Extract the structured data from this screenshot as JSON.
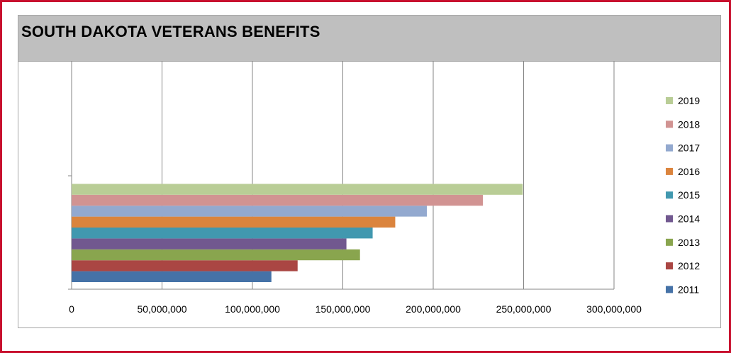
{
  "chart_data": {
    "type": "bar",
    "orientation": "horizontal",
    "title": "SOUTH DAKOTA VETERANS BENEFITS",
    "xlabel": "",
    "ylabel": "",
    "xlim": [
      0,
      300000000
    ],
    "xticks": [
      0,
      50000000,
      100000000,
      150000000,
      200000000,
      250000000,
      300000000
    ],
    "xtick_labels": [
      "0",
      "50,000,000",
      "100,000,000",
      "150,000,000",
      "200,000,000",
      "250,000,000",
      "300,000,000"
    ],
    "grid": true,
    "legend_position": "right",
    "series": [
      {
        "name": "2011",
        "values": [
          110500000
        ],
        "color": "#4572a7"
      },
      {
        "name": "2012",
        "values": [
          125000000
        ],
        "color": "#aa4643"
      },
      {
        "name": "2013",
        "values": [
          159500000
        ],
        "color": "#89a54e"
      },
      {
        "name": "2014",
        "values": [
          152000000
        ],
        "color": "#71588f"
      },
      {
        "name": "2015",
        "values": [
          166500000
        ],
        "color": "#4198af"
      },
      {
        "name": "2016",
        "values": [
          179000000
        ],
        "color": "#db843d"
      },
      {
        "name": "2017",
        "values": [
          196500000
        ],
        "color": "#93a9cf"
      },
      {
        "name": "2018",
        "values": [
          227500000
        ],
        "color": "#d19392"
      },
      {
        "name": "2019",
        "values": [
          249500000
        ],
        "color": "#b9cd96"
      }
    ]
  }
}
